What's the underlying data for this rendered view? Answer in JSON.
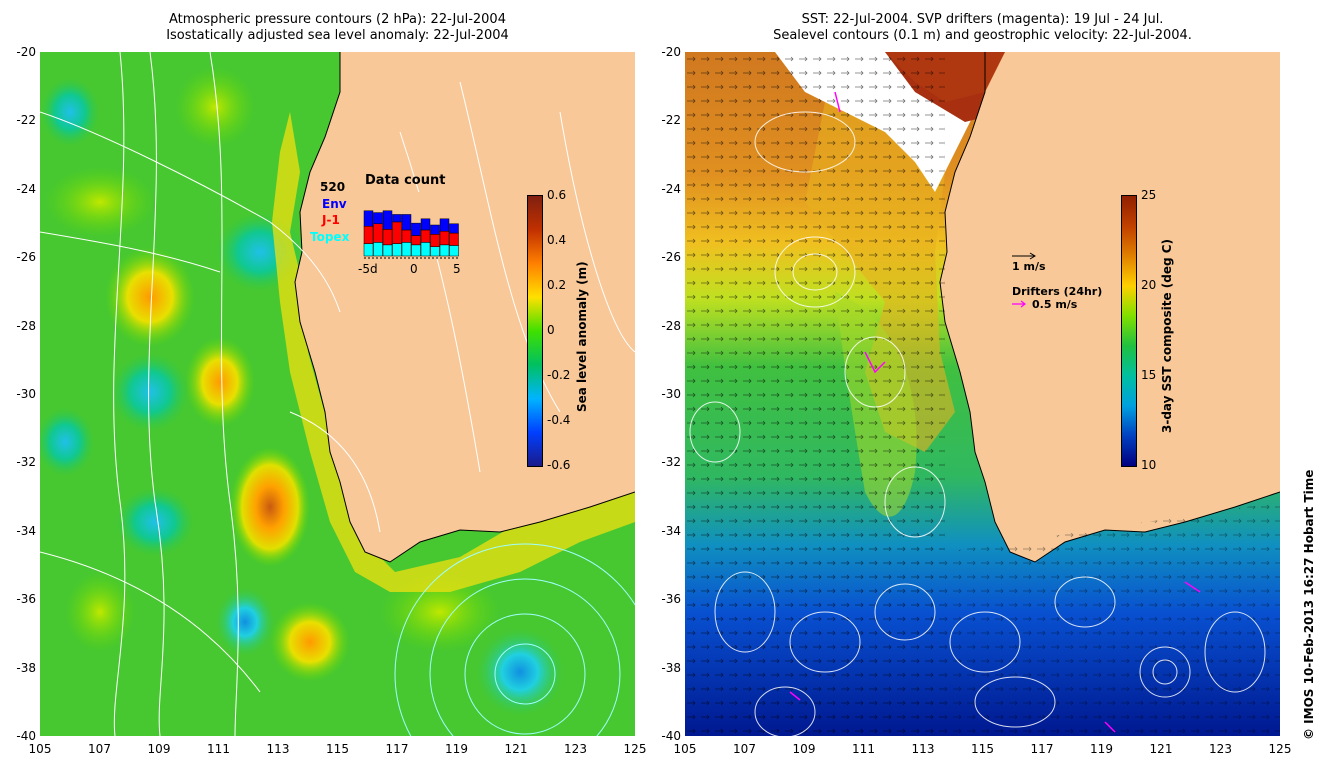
{
  "left_panel": {
    "title_line1": "Atmospheric pressure contours (2 hPa): 22-Jul-2004",
    "title_line2": "Isostatically adjusted sea level anomaly: 22-Jul-2004",
    "y_ticks": [
      "-20",
      "-22",
      "-24",
      "-26",
      "-28",
      "-30",
      "-32",
      "-34",
      "-36",
      "-38",
      "-40"
    ],
    "x_ticks": [
      "105",
      "107",
      "109",
      "111",
      "113",
      "115",
      "117",
      "119",
      "121",
      "123",
      "125"
    ],
    "colorbar": {
      "title": "Sea level anomaly (m)",
      "ticks": [
        "0.6",
        "0.4",
        "0.2",
        "0",
        "-0.2",
        "-0.4",
        "-0.6"
      ],
      "range": [
        -0.6,
        0.6
      ],
      "colors": [
        "#1a1a8a",
        "#0040ff",
        "#00b4ff",
        "#00c060",
        "#40e000",
        "#ffe000",
        "#ff8000",
        "#c03000",
        "#802010"
      ]
    },
    "data_count": {
      "title": "Data count",
      "count": "520",
      "labels": [
        "Env",
        "J-1",
        "Topex"
      ],
      "label_colors": [
        "#0000ff",
        "#ff0000",
        "#00ffff"
      ],
      "x_labels": [
        "-5d",
        "0",
        "5"
      ],
      "bars": [
        {
          "env": 0.25,
          "j1": 0.28,
          "topex": 0.2
        },
        {
          "env": 0.18,
          "j1": 0.3,
          "topex": 0.22
        },
        {
          "env": 0.3,
          "j1": 0.25,
          "topex": 0.18
        },
        {
          "env": 0.12,
          "j1": 0.35,
          "topex": 0.2
        },
        {
          "env": 0.25,
          "j1": 0.2,
          "topex": 0.22
        },
        {
          "env": 0.2,
          "j1": 0.15,
          "topex": 0.18
        },
        {
          "env": 0.18,
          "j1": 0.2,
          "topex": 0.22
        },
        {
          "env": 0.15,
          "j1": 0.2,
          "topex": 0.15
        },
        {
          "env": 0.2,
          "j1": 0.22,
          "topex": 0.18
        },
        {
          "env": 0.15,
          "j1": 0.2,
          "topex": 0.17
        }
      ]
    }
  },
  "right_panel": {
    "title_line1": "SST: 22-Jul-2004. SVP drifters (magenta): 19 Jul - 24 Jul.",
    "title_line2": "Sealevel contours (0.1 m) and geostrophic velocity: 22-Jul-2004.",
    "y_ticks": [
      "-20",
      "-22",
      "-24",
      "-26",
      "-28",
      "-30",
      "-32",
      "-34",
      "-36",
      "-38",
      "-40"
    ],
    "x_ticks": [
      "105",
      "107",
      "109",
      "111",
      "113",
      "115",
      "117",
      "119",
      "121",
      "123",
      "125"
    ],
    "colorbar": {
      "title": "3-day SST composite (deg C)",
      "ticks": [
        "25",
        "20",
        "15",
        "10"
      ],
      "range": [
        10,
        25
      ],
      "colors": [
        "#000080",
        "#0040c0",
        "#00a0e0",
        "#00c0a0",
        "#20c040",
        "#80e000",
        "#ffd000",
        "#e08000",
        "#c04000",
        "#902000"
      ]
    },
    "vector_scale_label": "1 m/s",
    "drifters_label": "Drifters (24hr)",
    "drifters_scale_label": "0.5 m/s",
    "drifter_color": "#ff00ff"
  },
  "credit": "© IMOS 10-Feb-2013 16:27 Hobart Time",
  "land_color": "#f8c898"
}
